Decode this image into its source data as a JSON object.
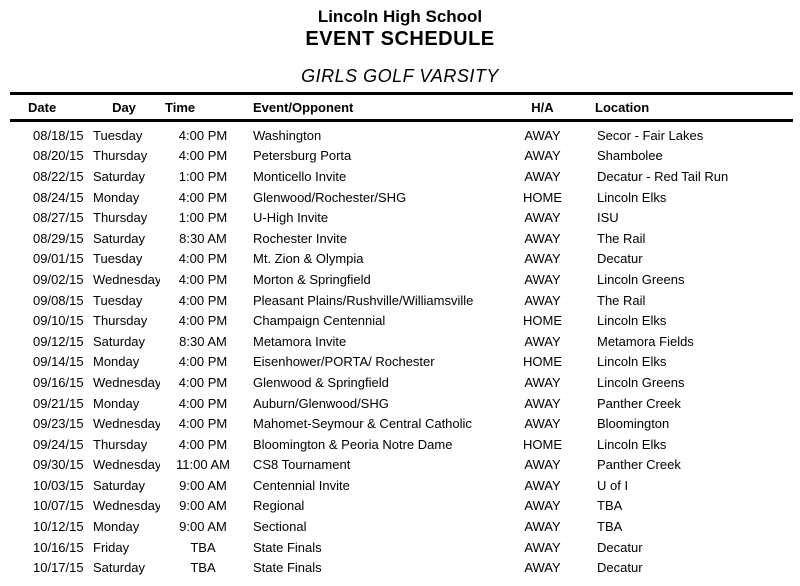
{
  "header": {
    "school": "Lincoln High School",
    "title": "EVENT SCHEDULE",
    "subtitle": "GIRLS GOLF VARSITY"
  },
  "colors": {
    "text": "#000000",
    "background": "#ffffff",
    "rule": "#000000"
  },
  "table": {
    "columns": [
      {
        "key": "date",
        "label": "Date"
      },
      {
        "key": "day",
        "label": "Day"
      },
      {
        "key": "time",
        "label": "Time"
      },
      {
        "key": "event",
        "label": "Event/Opponent"
      },
      {
        "key": "ha",
        "label": "H/A"
      },
      {
        "key": "location",
        "label": "Location"
      }
    ],
    "rows": [
      {
        "date": "08/18/15",
        "day": "Tuesday",
        "time": "4:00 PM",
        "event": "Washington",
        "ha": "AWAY",
        "location": "Secor - Fair Lakes"
      },
      {
        "date": "08/20/15",
        "day": "Thursday",
        "time": "4:00 PM",
        "event": "Petersburg Porta",
        "ha": "AWAY",
        "location": "Shambolee"
      },
      {
        "date": "08/22/15",
        "day": "Saturday",
        "time": "1:00 PM",
        "event": "Monticello Invite",
        "ha": "AWAY",
        "location": "Decatur - Red Tail Run"
      },
      {
        "date": "08/24/15",
        "day": "Monday",
        "time": "4:00 PM",
        "event": "Glenwood/Rochester/SHG",
        "ha": "HOME",
        "location": "Lincoln Elks"
      },
      {
        "date": "08/27/15",
        "day": "Thursday",
        "time": "1:00 PM",
        "event": "U-High Invite",
        "ha": "AWAY",
        "location": "ISU"
      },
      {
        "date": "08/29/15",
        "day": "Saturday",
        "time": "8:30 AM",
        "event": "Rochester Invite",
        "ha": "AWAY",
        "location": "The Rail"
      },
      {
        "date": "09/01/15",
        "day": "Tuesday",
        "time": "4:00 PM",
        "event": "Mt. Zion & Olympia",
        "ha": "AWAY",
        "location": "Decatur"
      },
      {
        "date": "09/02/15",
        "day": "Wednesday",
        "time": "4:00 PM",
        "event": "Morton & Springfield",
        "ha": "AWAY",
        "location": "Lincoln Greens"
      },
      {
        "date": "09/08/15",
        "day": "Tuesday",
        "time": "4:00 PM",
        "event": "Pleasant Plains/Rushville/Williamsville",
        "ha": "AWAY",
        "location": "The Rail"
      },
      {
        "date": "09/10/15",
        "day": "Thursday",
        "time": "4:00 PM",
        "event": "Champaign Centennial",
        "ha": "HOME",
        "location": "Lincoln Elks"
      },
      {
        "date": "09/12/15",
        "day": "Saturday",
        "time": "8:30 AM",
        "event": "Metamora Invite",
        "ha": "AWAY",
        "location": "Metamora Fields"
      },
      {
        "date": "09/14/15",
        "day": "Monday",
        "time": "4:00 PM",
        "event": "Eisenhower/PORTA/ Rochester",
        "ha": "HOME",
        "location": "Lincoln Elks"
      },
      {
        "date": "09/16/15",
        "day": "Wednesday",
        "time": "4:00 PM",
        "event": "Glenwood & Springfield",
        "ha": "AWAY",
        "location": "Lincoln Greens"
      },
      {
        "date": "09/21/15",
        "day": "Monday",
        "time": "4:00 PM",
        "event": "Auburn/Glenwood/SHG",
        "ha": "AWAY",
        "location": "Panther Creek"
      },
      {
        "date": "09/23/15",
        "day": "Wednesday",
        "time": "4:00 PM",
        "event": "Mahomet-Seymour & Central Catholic",
        "ha": "AWAY",
        "location": "Bloomington"
      },
      {
        "date": "09/24/15",
        "day": "Thursday",
        "time": "4:00 PM",
        "event": "Bloomington & Peoria Notre Dame",
        "ha": "HOME",
        "location": "Lincoln Elks"
      },
      {
        "date": "09/30/15",
        "day": "Wednesday",
        "time": "11:00 AM",
        "event": "CS8 Tournament",
        "ha": "AWAY",
        "location": "Panther Creek"
      },
      {
        "date": "10/03/15",
        "day": "Saturday",
        "time": "9:00 AM",
        "event": "Centennial Invite",
        "ha": "AWAY",
        "location": "U of I"
      },
      {
        "date": "10/07/15",
        "day": "Wednesday",
        "time": "9:00 AM",
        "event": "Regional",
        "ha": "AWAY",
        "location": "TBA"
      },
      {
        "date": "10/12/15",
        "day": "Monday",
        "time": "9:00 AM",
        "event": "Sectional",
        "ha": "AWAY",
        "location": "TBA"
      },
      {
        "date": "10/16/15",
        "day": "Friday",
        "time": "TBA",
        "event": "State Finals",
        "ha": "AWAY",
        "location": "Decatur"
      },
      {
        "date": "10/17/15",
        "day": "Saturday",
        "time": "TBA",
        "event": "State Finals",
        "ha": "AWAY",
        "location": "Decatur"
      }
    ]
  }
}
